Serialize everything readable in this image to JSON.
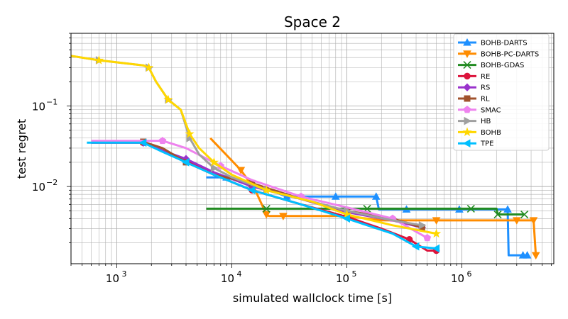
{
  "chart_data": {
    "type": "line",
    "title": "Space 2",
    "xlabel": "simulated wallclock time [s]",
    "ylabel": "test regret",
    "xscale": "log",
    "yscale": "log",
    "xlim": [
      400,
      6300000
    ],
    "ylim": [
      0.0011,
      0.8
    ],
    "grid": true,
    "legend_position": "top-right",
    "x_ticks": [
      {
        "value": 1000,
        "base": "10",
        "exp": "3"
      },
      {
        "value": 10000,
        "base": "10",
        "exp": "4"
      },
      {
        "value": 100000,
        "base": "10",
        "exp": "5"
      },
      {
        "value": 1000000,
        "base": "10",
        "exp": "6"
      }
    ],
    "y_ticks": [
      {
        "value": 0.01,
        "base": "10",
        "exp": "−2"
      },
      {
        "value": 0.1,
        "base": "10",
        "exp": "−1"
      }
    ],
    "series": [
      {
        "name": "BOHB-DARTS",
        "color": "#1e90ff",
        "marker": "triangle-up",
        "x": [
          6000,
          9000,
          15000,
          30000,
          50000,
          80000,
          130000,
          180000,
          190000,
          330000,
          700000,
          950000,
          2000000,
          2500000,
          2550000,
          3400000,
          3700000
        ],
        "y": [
          0.013,
          0.013,
          0.011,
          0.0075,
          0.0075,
          0.0075,
          0.0075,
          0.0075,
          0.0052,
          0.0052,
          0.0052,
          0.0052,
          0.0052,
          0.0052,
          0.0014,
          0.0014,
          0.0014
        ]
      },
      {
        "name": "BOHB-PC-DARTS",
        "color": "#ff8c00",
        "marker": "triangle-down",
        "x": [
          6500,
          12000,
          16000,
          20000,
          21000,
          28000,
          60000,
          100000,
          200000,
          600000,
          1700000,
          3000000,
          4000000,
          4200000,
          4400000
        ],
        "y": [
          0.04,
          0.016,
          0.009,
          0.0045,
          0.0043,
          0.0043,
          0.0043,
          0.0043,
          0.0038,
          0.0038,
          0.0038,
          0.0038,
          0.0038,
          0.0038,
          0.0014
        ]
      },
      {
        "name": "BOHB-GDAS",
        "color": "#228b22",
        "marker": "x",
        "x": [
          6000,
          20000,
          50000,
          150000,
          450000,
          1200000,
          2000000,
          2050000,
          3500000
        ],
        "y": [
          0.0053,
          0.0053,
          0.0053,
          0.0053,
          0.0053,
          0.0053,
          0.0053,
          0.0045,
          0.0045
        ]
      },
      {
        "name": "RE",
        "color": "#dc143c",
        "marker": "circle",
        "x": [
          600,
          1700,
          2500,
          4000,
          7000,
          15000,
          40000,
          100000,
          200000,
          350000,
          500000,
          600000
        ],
        "y": [
          0.035,
          0.035,
          0.028,
          0.021,
          0.014,
          0.009,
          0.006,
          0.0042,
          0.003,
          0.0022,
          0.0016,
          0.0016
        ]
      },
      {
        "name": "RS",
        "color": "#9932cc",
        "marker": "diamond",
        "x": [
          600,
          1700,
          2500,
          4000,
          7000,
          15000,
          40000,
          100000,
          250000,
          450000
        ],
        "y": [
          0.035,
          0.035,
          0.028,
          0.022,
          0.015,
          0.01,
          0.007,
          0.0048,
          0.0038,
          0.0031
        ]
      },
      {
        "name": "RL",
        "color": "#a0522d",
        "marker": "square",
        "x": [
          600,
          1700,
          2500,
          4000,
          7000,
          15000,
          40000,
          100000,
          250000,
          450000
        ],
        "y": [
          0.036,
          0.036,
          0.03,
          0.02,
          0.014,
          0.011,
          0.007,
          0.005,
          0.004,
          0.0031
        ]
      },
      {
        "name": "SMAC",
        "color": "#ee82ee",
        "marker": "pentagon",
        "x": [
          600,
          2500,
          4000,
          8000,
          15000,
          40000,
          100000,
          250000,
          500000
        ],
        "y": [
          0.037,
          0.037,
          0.03,
          0.018,
          0.012,
          0.0075,
          0.0055,
          0.004,
          0.0023
        ]
      },
      {
        "name": "HB",
        "color": "#a0a0a0",
        "marker": "triangle-right",
        "x": [
          400,
          700,
          1700,
          1900,
          2200,
          2800,
          3600,
          4300,
          5200,
          7000,
          10000,
          20000,
          50000,
          100000,
          250000,
          450000
        ],
        "y": [
          0.42,
          0.37,
          0.32,
          0.3,
          0.2,
          0.12,
          0.09,
          0.04,
          0.025,
          0.017,
          0.013,
          0.009,
          0.0065,
          0.005,
          0.0038,
          0.0033
        ]
      },
      {
        "name": "BOHB",
        "color": "#ffd700",
        "marker": "star",
        "x": [
          400,
          700,
          1700,
          1900,
          2200,
          2800,
          3600,
          4300,
          5200,
          7000,
          10000,
          20000,
          50000,
          100000,
          250000,
          600000
        ],
        "y": [
          0.42,
          0.37,
          0.32,
          0.3,
          0.2,
          0.12,
          0.09,
          0.045,
          0.03,
          0.02,
          0.014,
          0.009,
          0.0065,
          0.0045,
          0.0033,
          0.0026
        ]
      },
      {
        "name": "TPE",
        "color": "#00bfff",
        "marker": "triangle-left",
        "x": [
          550,
          1700,
          2500,
          4000,
          7000,
          15000,
          40000,
          100000,
          250000,
          400000,
          600000
        ],
        "y": [
          0.035,
          0.035,
          0.027,
          0.02,
          0.014,
          0.009,
          0.006,
          0.004,
          0.0026,
          0.0018,
          0.0017
        ]
      }
    ]
  }
}
